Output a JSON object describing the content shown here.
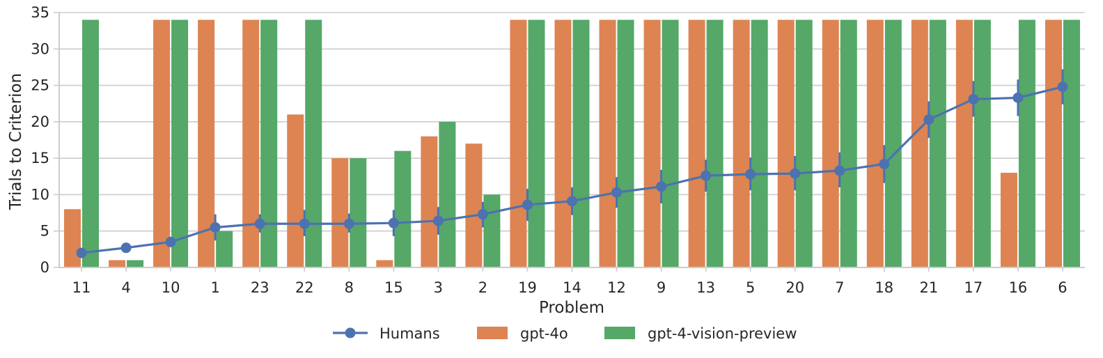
{
  "chart_data": {
    "type": "bar",
    "title": "",
    "xlabel": "Problem",
    "ylabel": "Trials to Criterion",
    "ylim": [
      0,
      35
    ],
    "yticks": [
      0,
      5,
      10,
      15,
      20,
      25,
      30,
      35
    ],
    "grid": "horizontal",
    "legend_position": "bottom-center",
    "categories": [
      "11",
      "4",
      "10",
      "1",
      "23",
      "22",
      "8",
      "15",
      "3",
      "2",
      "19",
      "14",
      "12",
      "9",
      "13",
      "5",
      "20",
      "7",
      "18",
      "21",
      "17",
      "16",
      "6"
    ],
    "series": [
      {
        "name": "gpt-4o",
        "kind": "bar",
        "color": "#dd8452",
        "values": [
          8,
          1,
          34,
          34,
          34,
          21,
          15,
          1,
          18,
          17,
          34,
          34,
          34,
          34,
          34,
          34,
          34,
          34,
          34,
          34,
          34,
          13,
          34
        ]
      },
      {
        "name": "gpt-4-vision-preview",
        "kind": "bar",
        "color": "#55a868",
        "values": [
          34,
          1,
          34,
          5,
          34,
          34,
          15,
          16,
          20,
          10,
          34,
          34,
          34,
          34,
          34,
          34,
          34,
          34,
          34,
          34,
          34,
          34,
          34
        ]
      },
      {
        "name": "Humans",
        "kind": "line",
        "color": "#4c72b0",
        "values": [
          2.0,
          2.7,
          3.5,
          5.5,
          6.0,
          6.0,
          6.0,
          6.1,
          6.4,
          7.3,
          8.6,
          9.1,
          10.3,
          11.1,
          12.6,
          12.8,
          12.9,
          13.3,
          14.2,
          20.3,
          23.1,
          23.3,
          24.8
        ],
        "error_low": [
          1.9,
          2.2,
          3.0,
          3.7,
          4.8,
          4.3,
          4.8,
          4.3,
          4.5,
          5.5,
          6.4,
          7.2,
          8.2,
          8.8,
          10.4,
          10.6,
          10.6,
          11.0,
          11.6,
          17.8,
          20.7,
          20.8,
          22.4
        ],
        "error_high": [
          2.1,
          3.2,
          4.0,
          7.3,
          7.3,
          7.9,
          7.4,
          7.9,
          8.3,
          9.0,
          10.8,
          11.0,
          12.4,
          13.4,
          14.8,
          15.1,
          15.3,
          15.8,
          16.8,
          22.8,
          25.6,
          25.8,
          27.2
        ]
      }
    ]
  }
}
